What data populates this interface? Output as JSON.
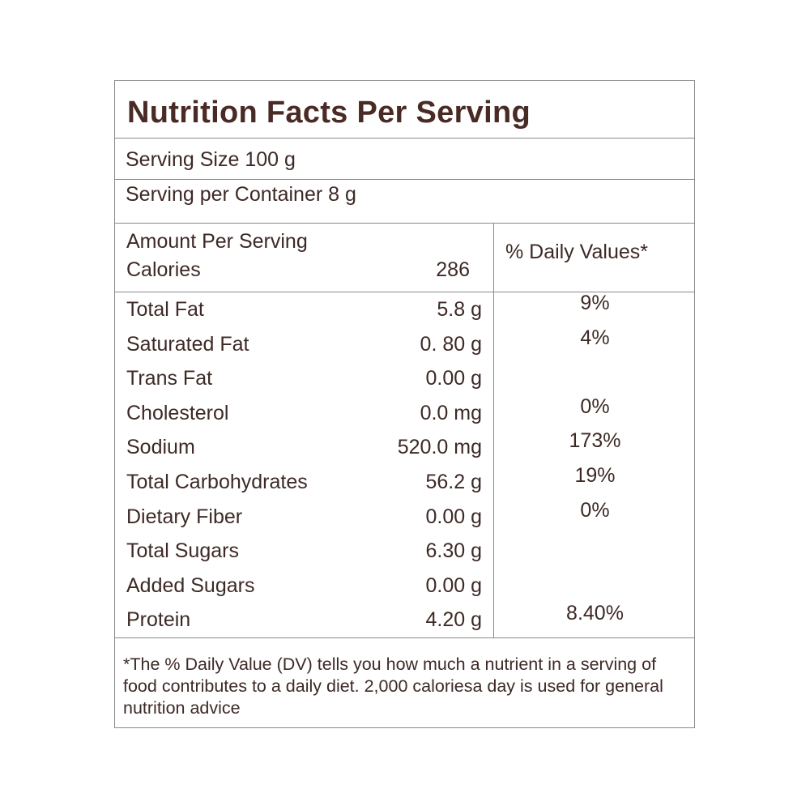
{
  "title": "Nutrition Facts Per Serving",
  "serving_size": "Serving Size 100 g",
  "serving_per_container": "Serving per Container 8 g",
  "amount_per_serving": "Amount Per Serving",
  "calories_label": "Calories",
  "calories_value": "286",
  "daily_values_header": "% Daily Values*",
  "nutrients": [
    {
      "name": "Total Fat",
      "amount": "5.8 g",
      "dv": "9%"
    },
    {
      "name": "Saturated Fat",
      "amount": "0. 80 g",
      "dv": "4%"
    },
    {
      "name": "Trans Fat",
      "amount": "0.00 g",
      "dv": ""
    },
    {
      "name": "Cholesterol",
      "amount": "0.0 mg",
      "dv": "0%"
    },
    {
      "name": "Sodium",
      "amount": "520.0 mg",
      "dv": "173%"
    },
    {
      "name": "Total Carbohydrates",
      "amount": "56.2 g",
      "dv": "19%"
    },
    {
      "name": "Dietary Fiber",
      "amount": "0.00 g",
      "dv": "0%"
    },
    {
      "name": "Total Sugars",
      "amount": "6.30 g",
      "dv": ""
    },
    {
      "name": "Added Sugars",
      "amount": "0.00 g",
      "dv": ""
    },
    {
      "name": "Protein",
      "amount": "4.20 g",
      "dv": "8.40%"
    }
  ],
  "footnote": "*The % Daily Value (DV) tells you how much a nutrient in a serving of food contributes to a daily diet. 2,000 caloriesa day is used for general nutrition advice",
  "colors": {
    "text": "#3d2a26",
    "title": "#4a2a24",
    "border": "#8a8a8a"
  }
}
